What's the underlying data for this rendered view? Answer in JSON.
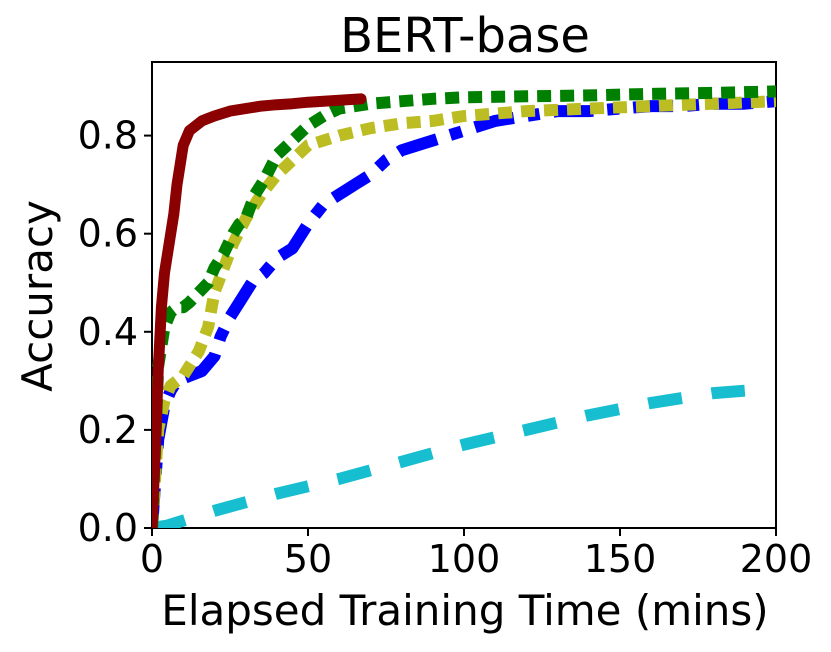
{
  "chart_data": {
    "type": "line",
    "title": "BERT-base",
    "xlabel": "Elapsed Training Time (mins)",
    "ylabel": "Accuracy",
    "xlim": [
      0,
      200
    ],
    "ylim": [
      0,
      0.95
    ],
    "xticks": [
      0,
      50,
      100,
      150,
      200
    ],
    "xtick_labels": [
      "0",
      "50",
      "100",
      "150",
      "200"
    ],
    "yticks": [
      0.0,
      0.2,
      0.4,
      0.6,
      0.8
    ],
    "ytick_labels": [
      "0.0",
      "0.2",
      "0.4",
      "0.6",
      "0.8"
    ],
    "legend": "none",
    "grid": false,
    "series": [
      {
        "name": "cyan-dashed",
        "color": "#17becf",
        "style": "dashed",
        "x": [
          0,
          5,
          10,
          20,
          40,
          60,
          80,
          100,
          120,
          140,
          160,
          180,
          190
        ],
        "y": [
          0.0,
          0.005,
          0.015,
          0.035,
          0.07,
          0.1,
          0.135,
          0.17,
          0.2,
          0.23,
          0.255,
          0.275,
          0.28
        ]
      },
      {
        "name": "blue-dashdot",
        "color": "#0000ff",
        "style": "dashdot",
        "x": [
          0,
          2,
          4,
          6,
          8,
          12,
          16,
          20,
          22,
          25,
          28,
          32,
          36,
          40,
          45,
          50,
          55,
          60,
          65,
          70,
          75,
          80,
          85,
          90,
          95,
          100,
          110,
          120,
          130,
          140,
          150,
          160,
          170,
          180,
          190,
          200
        ],
        "y": [
          0.0,
          0.18,
          0.25,
          0.28,
          0.3,
          0.31,
          0.32,
          0.35,
          0.39,
          0.43,
          0.46,
          0.5,
          0.52,
          0.55,
          0.57,
          0.62,
          0.66,
          0.68,
          0.7,
          0.72,
          0.75,
          0.77,
          0.78,
          0.79,
          0.8,
          0.81,
          0.83,
          0.84,
          0.85,
          0.85,
          0.855,
          0.86,
          0.86,
          0.865,
          0.865,
          0.87
        ]
      },
      {
        "name": "olive-dotted",
        "color": "#bcbd22",
        "style": "dotted",
        "x": [
          0,
          2,
          4,
          6,
          8,
          10,
          12,
          15,
          18,
          20,
          23,
          26,
          30,
          35,
          40,
          45,
          50,
          60,
          70,
          80,
          90,
          100,
          120,
          140,
          160,
          180,
          200
        ],
        "y": [
          0.0,
          0.2,
          0.26,
          0.29,
          0.3,
          0.31,
          0.33,
          0.36,
          0.41,
          0.48,
          0.53,
          0.58,
          0.63,
          0.68,
          0.72,
          0.75,
          0.78,
          0.8,
          0.815,
          0.825,
          0.83,
          0.84,
          0.85,
          0.855,
          0.86,
          0.865,
          0.87
        ]
      },
      {
        "name": "green-dotted",
        "color": "#008000",
        "style": "dotted",
        "x": [
          0,
          2,
          4,
          6,
          8,
          10,
          12,
          15,
          18,
          20,
          23,
          26,
          28,
          30,
          33,
          36,
          40,
          45,
          50,
          55,
          60,
          70,
          80,
          90,
          100,
          120,
          140,
          160,
          180,
          200
        ],
        "y": [
          0.0,
          0.33,
          0.41,
          0.44,
          0.45,
          0.45,
          0.46,
          0.48,
          0.5,
          0.53,
          0.56,
          0.6,
          0.62,
          0.63,
          0.68,
          0.71,
          0.76,
          0.79,
          0.82,
          0.84,
          0.855,
          0.865,
          0.87,
          0.875,
          0.878,
          0.88,
          0.882,
          0.885,
          0.887,
          0.89
        ]
      },
      {
        "name": "darkred-solid",
        "color": "#8b0000",
        "style": "solid",
        "x": [
          0,
          1,
          2,
          3,
          4,
          5,
          6,
          7,
          8,
          9,
          10,
          12,
          14,
          16,
          18,
          20,
          25,
          30,
          35,
          40,
          45,
          50,
          55,
          60,
          65,
          67
        ],
        "y": [
          0.0,
          0.15,
          0.32,
          0.45,
          0.52,
          0.56,
          0.6,
          0.64,
          0.7,
          0.74,
          0.78,
          0.81,
          0.82,
          0.83,
          0.835,
          0.84,
          0.85,
          0.855,
          0.86,
          0.863,
          0.865,
          0.868,
          0.87,
          0.872,
          0.874,
          0.875
        ]
      }
    ]
  }
}
